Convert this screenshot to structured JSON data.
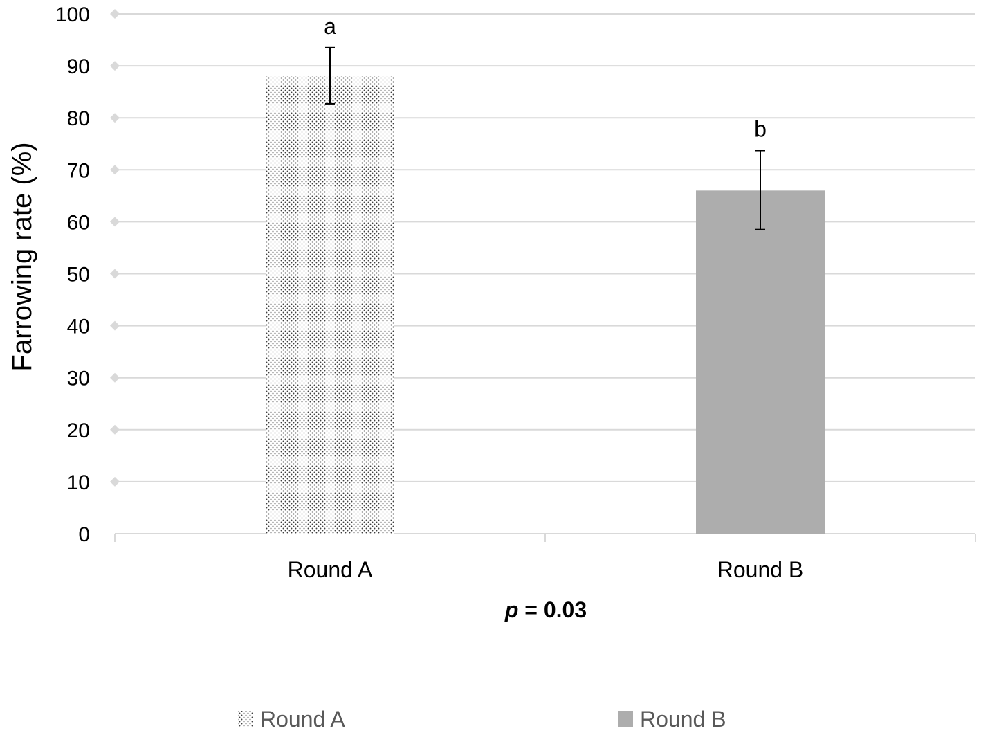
{
  "chart_data": {
    "type": "bar",
    "categories": [
      "Round A",
      "Round B"
    ],
    "values": [
      88,
      66
    ],
    "error_bars": [
      {
        "low": 82.7,
        "high": 93.5
      },
      {
        "low": 58.5,
        "high": 73.7
      }
    ],
    "significance_labels": [
      "a",
      "b"
    ],
    "ylabel": "Farrowing rate (%)",
    "ylim": [
      0,
      100
    ],
    "yticks": [
      0,
      10,
      20,
      30,
      40,
      50,
      60,
      70,
      80,
      90,
      100
    ],
    "grid": true,
    "note_italic": "p",
    "note_rest": " = 0.03",
    "legend": {
      "position": "bottom",
      "entries": [
        {
          "label": "Round A",
          "style": "dotted"
        },
        {
          "label": "Round B",
          "style": "solid"
        }
      ]
    },
    "colors": {
      "bar_b": "#adadad",
      "grid": "#d9d9d9",
      "dots": "#404040"
    }
  }
}
